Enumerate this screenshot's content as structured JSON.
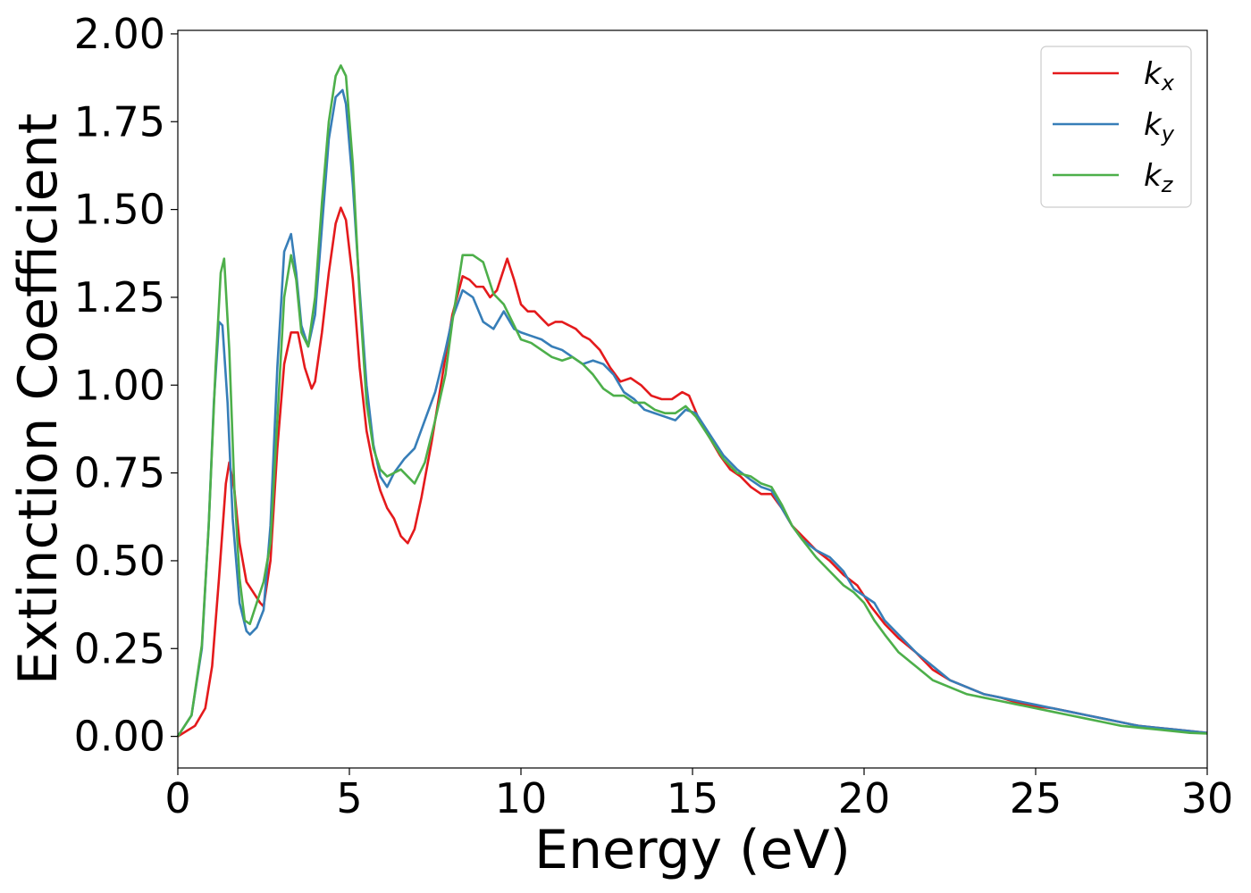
{
  "chart_data": {
    "type": "line",
    "xlabel": "Energy (eV)",
    "ylabel": "Extinction Coefficient",
    "xlim": [
      0,
      30
    ],
    "ylim": [
      -0.09,
      2.01
    ],
    "xticks": [
      0,
      5,
      10,
      15,
      20,
      25,
      30
    ],
    "xtick_labels": [
      "0",
      "5",
      "10",
      "15",
      "20",
      "25",
      "30"
    ],
    "yticks": [
      0.0,
      0.25,
      0.5,
      0.75,
      1.0,
      1.25,
      1.5,
      1.75,
      2.0
    ],
    "ytick_labels": [
      "0.00",
      "0.25",
      "0.50",
      "0.75",
      "1.00",
      "1.25",
      "1.50",
      "1.75",
      "2.00"
    ],
    "grid": false,
    "legend_position": "top-right",
    "series": [
      {
        "name": "k_x",
        "label_base": "k",
        "label_sub": "x",
        "color": "#e41a1c",
        "x": [
          0,
          0.5,
          0.8,
          1.0,
          1.2,
          1.4,
          1.5,
          1.65,
          1.8,
          2.0,
          2.2,
          2.4,
          2.5,
          2.7,
          2.9,
          3.1,
          3.3,
          3.5,
          3.7,
          3.9,
          4.0,
          4.2,
          4.4,
          4.6,
          4.75,
          4.9,
          5.1,
          5.3,
          5.5,
          5.7,
          5.9,
          6.1,
          6.3,
          6.5,
          6.7,
          6.9,
          7.1,
          7.4,
          7.7,
          8.0,
          8.3,
          8.5,
          8.7,
          8.9,
          9.1,
          9.3,
          9.6,
          9.8,
          10.0,
          10.2,
          10.4,
          10.6,
          10.8,
          11.0,
          11.2,
          11.4,
          11.6,
          11.8,
          12.0,
          12.3,
          12.6,
          12.9,
          13.2,
          13.5,
          13.8,
          14.1,
          14.4,
          14.7,
          14.9,
          15.2,
          15.5,
          15.8,
          16.1,
          16.4,
          16.7,
          17.0,
          17.3,
          17.6,
          17.9,
          18.2,
          18.6,
          19.0,
          19.4,
          19.8,
          20.2,
          20.6,
          21.0,
          21.5,
          22.0,
          22.5,
          23.0,
          23.5,
          24.0,
          24.5,
          25.0,
          25.5,
          26.0,
          26.5,
          27.0,
          27.5,
          28.0,
          28.5,
          29.0,
          29.5,
          30.0
        ],
        "y": [
          0.0,
          0.03,
          0.08,
          0.2,
          0.45,
          0.72,
          0.78,
          0.7,
          0.55,
          0.44,
          0.41,
          0.38,
          0.37,
          0.5,
          0.82,
          1.06,
          1.15,
          1.15,
          1.05,
          0.99,
          1.01,
          1.15,
          1.32,
          1.46,
          1.505,
          1.47,
          1.3,
          1.05,
          0.87,
          0.77,
          0.7,
          0.65,
          0.62,
          0.57,
          0.55,
          0.59,
          0.68,
          0.84,
          1.02,
          1.2,
          1.31,
          1.3,
          1.28,
          1.28,
          1.25,
          1.27,
          1.36,
          1.3,
          1.23,
          1.21,
          1.21,
          1.19,
          1.17,
          1.18,
          1.18,
          1.17,
          1.16,
          1.14,
          1.13,
          1.1,
          1.05,
          1.01,
          1.02,
          1.0,
          0.97,
          0.96,
          0.96,
          0.98,
          0.97,
          0.9,
          0.85,
          0.8,
          0.76,
          0.74,
          0.71,
          0.69,
          0.69,
          0.65,
          0.6,
          0.57,
          0.53,
          0.5,
          0.46,
          0.43,
          0.37,
          0.32,
          0.28,
          0.24,
          0.19,
          0.16,
          0.14,
          0.12,
          0.11,
          0.095,
          0.085,
          0.08,
          0.07,
          0.06,
          0.05,
          0.04,
          0.03,
          0.025,
          0.02,
          0.015,
          0.01
        ]
      },
      {
        "name": "k_y",
        "label_base": "k",
        "label_sub": "y",
        "color": "#377eb8",
        "x": [
          0,
          0.4,
          0.7,
          0.9,
          1.05,
          1.2,
          1.3,
          1.45,
          1.6,
          1.8,
          2.0,
          2.1,
          2.3,
          2.5,
          2.7,
          2.9,
          3.1,
          3.3,
          3.45,
          3.6,
          3.8,
          4.0,
          4.2,
          4.4,
          4.6,
          4.8,
          4.9,
          5.1,
          5.3,
          5.5,
          5.7,
          5.9,
          6.1,
          6.3,
          6.6,
          6.9,
          7.2,
          7.5,
          7.8,
          8.0,
          8.3,
          8.6,
          8.9,
          9.2,
          9.5,
          9.8,
          10.0,
          10.3,
          10.6,
          10.9,
          11.2,
          11.5,
          11.8,
          12.1,
          12.4,
          12.7,
          13.0,
          13.3,
          13.6,
          13.9,
          14.2,
          14.5,
          14.8,
          15.1,
          15.5,
          15.9,
          16.3,
          16.7,
          17.0,
          17.3,
          17.6,
          17.9,
          18.2,
          18.6,
          19.0,
          19.4,
          19.7,
          20.0,
          20.3,
          20.6,
          21.0,
          21.5,
          22.0,
          22.5,
          23.0,
          23.5,
          24.0,
          24.5,
          25.0,
          25.5,
          26.0,
          26.5,
          27.0,
          27.5,
          28.0,
          28.5,
          29.0,
          29.5,
          30.0
        ],
        "y": [
          0.0,
          0.06,
          0.25,
          0.6,
          0.95,
          1.18,
          1.17,
          0.95,
          0.62,
          0.38,
          0.3,
          0.29,
          0.31,
          0.36,
          0.6,
          1.05,
          1.38,
          1.43,
          1.32,
          1.17,
          1.11,
          1.2,
          1.45,
          1.7,
          1.82,
          1.84,
          1.8,
          1.57,
          1.27,
          1.0,
          0.83,
          0.74,
          0.71,
          0.75,
          0.79,
          0.82,
          0.9,
          0.98,
          1.1,
          1.19,
          1.27,
          1.25,
          1.18,
          1.16,
          1.21,
          1.16,
          1.15,
          1.14,
          1.13,
          1.11,
          1.1,
          1.08,
          1.06,
          1.07,
          1.06,
          1.03,
          0.98,
          0.96,
          0.93,
          0.92,
          0.91,
          0.9,
          0.93,
          0.92,
          0.86,
          0.8,
          0.76,
          0.73,
          0.71,
          0.7,
          0.65,
          0.6,
          0.56,
          0.53,
          0.51,
          0.47,
          0.42,
          0.4,
          0.38,
          0.33,
          0.29,
          0.24,
          0.2,
          0.16,
          0.14,
          0.12,
          0.11,
          0.1,
          0.09,
          0.08,
          0.07,
          0.06,
          0.05,
          0.04,
          0.03,
          0.025,
          0.02,
          0.015,
          0.01
        ]
      },
      {
        "name": "k_z",
        "label_base": "k",
        "label_sub": "z",
        "color": "#4daf4a",
        "x": [
          0,
          0.4,
          0.7,
          0.9,
          1.1,
          1.25,
          1.35,
          1.5,
          1.65,
          1.8,
          1.95,
          2.1,
          2.3,
          2.5,
          2.7,
          2.9,
          3.1,
          3.3,
          3.45,
          3.6,
          3.8,
          4.0,
          4.2,
          4.4,
          4.6,
          4.75,
          4.9,
          5.1,
          5.3,
          5.5,
          5.7,
          5.9,
          6.1,
          6.3,
          6.5,
          6.7,
          6.9,
          7.2,
          7.5,
          7.8,
          8.0,
          8.3,
          8.6,
          8.9,
          9.2,
          9.5,
          9.8,
          10.0,
          10.3,
          10.6,
          10.9,
          11.2,
          11.5,
          11.8,
          12.1,
          12.4,
          12.7,
          13.0,
          13.3,
          13.6,
          13.9,
          14.2,
          14.5,
          14.8,
          15.1,
          15.5,
          15.9,
          16.3,
          16.7,
          17.0,
          17.3,
          17.6,
          17.9,
          18.2,
          18.6,
          19.0,
          19.4,
          19.7,
          20.0,
          20.3,
          20.6,
          21.0,
          21.5,
          22.0,
          22.5,
          23.0,
          23.5,
          24.0,
          24.5,
          25.0,
          25.5,
          26.0,
          26.5,
          27.0,
          27.5,
          28.0,
          28.5,
          29.0,
          29.5,
          30.0
        ],
        "y": [
          0.0,
          0.06,
          0.26,
          0.6,
          1.05,
          1.32,
          1.36,
          1.1,
          0.7,
          0.45,
          0.33,
          0.32,
          0.38,
          0.44,
          0.55,
          0.9,
          1.25,
          1.37,
          1.3,
          1.15,
          1.11,
          1.25,
          1.52,
          1.75,
          1.88,
          1.91,
          1.88,
          1.63,
          1.25,
          0.95,
          0.82,
          0.76,
          0.74,
          0.75,
          0.76,
          0.74,
          0.72,
          0.78,
          0.9,
          1.03,
          1.18,
          1.37,
          1.37,
          1.35,
          1.26,
          1.23,
          1.17,
          1.13,
          1.12,
          1.1,
          1.08,
          1.07,
          1.08,
          1.06,
          1.03,
          0.99,
          0.97,
          0.97,
          0.95,
          0.95,
          0.93,
          0.92,
          0.92,
          0.94,
          0.91,
          0.85,
          0.79,
          0.75,
          0.74,
          0.72,
          0.71,
          0.66,
          0.6,
          0.56,
          0.51,
          0.47,
          0.43,
          0.41,
          0.38,
          0.33,
          0.29,
          0.24,
          0.2,
          0.16,
          0.14,
          0.12,
          0.11,
          0.1,
          0.09,
          0.08,
          0.07,
          0.06,
          0.05,
          0.04,
          0.03,
          0.025,
          0.02,
          0.015,
          0.01,
          0.008
        ]
      }
    ]
  }
}
